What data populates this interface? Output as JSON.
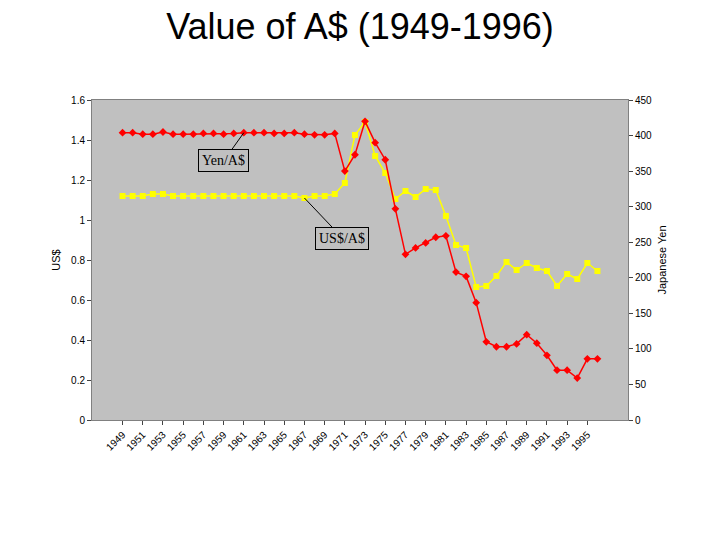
{
  "chart_data": {
    "type": "line",
    "title": "Value of A$ (1949-1996)",
    "ylabel": "US$",
    "y2label": "Japanese Yen",
    "categories": [
      "1949",
      null,
      "1951",
      null,
      "1953",
      null,
      "1955",
      null,
      "1957",
      null,
      "1959",
      null,
      "1961",
      null,
      "1963",
      null,
      "1965",
      null,
      "1967",
      null,
      "1969",
      null,
      "1971",
      null,
      "1973",
      null,
      "1975",
      null,
      "1977",
      null,
      "1979",
      null,
      "1981",
      null,
      "1983",
      null,
      "1985",
      null,
      "1987",
      null,
      "1989",
      null,
      "1991",
      null,
      "1993",
      null,
      "1995",
      null
    ],
    "series": [
      {
        "name": "US$/A$",
        "color": "#ffff00",
        "marker": "square",
        "line_style": "solid",
        "axis": "y",
        "values": [
          1.12,
          1.12,
          1.12,
          1.13,
          1.13,
          1.12,
          1.12,
          1.12,
          1.12,
          1.12,
          1.12,
          1.12,
          1.12,
          1.12,
          1.12,
          1.12,
          1.12,
          1.12,
          1.11,
          1.12,
          1.12,
          1.13,
          1.185,
          1.425,
          1.49,
          1.32,
          1.235,
          1.105,
          1.145,
          1.115,
          1.155,
          1.15,
          1.02,
          0.875,
          0.86,
          0.665,
          0.67,
          0.72,
          0.79,
          0.75,
          0.785,
          0.76,
          0.745,
          0.67,
          0.73,
          0.705,
          0.785,
          0.745
        ]
      },
      {
        "name": "Yen/A$",
        "color": "#ff0000",
        "marker": "diamond",
        "line_style": "solid",
        "axis": "y2",
        "values": [
          404,
          404,
          402,
          402,
          405,
          402,
          402,
          402,
          403,
          403,
          402,
          403,
          404,
          404,
          404,
          403,
          403,
          404,
          402,
          401,
          401,
          403,
          350,
          373,
          420,
          390,
          366,
          297,
          233,
          242,
          249,
          257,
          259,
          208,
          202,
          165,
          110,
          103,
          103,
          107,
          120,
          108,
          91,
          70,
          70,
          59,
          86,
          86
        ]
      }
    ],
    "ylim": [
      0,
      1.6
    ],
    "yticks": [
      0,
      0.2,
      0.4,
      0.6,
      0.8,
      1,
      1.2,
      1.4,
      1.6
    ],
    "y2lim": [
      0,
      450
    ],
    "y2ticks": [
      0,
      50,
      100,
      150,
      200,
      250,
      300,
      350,
      400,
      450
    ],
    "grid": false,
    "legend": "none"
  }
}
